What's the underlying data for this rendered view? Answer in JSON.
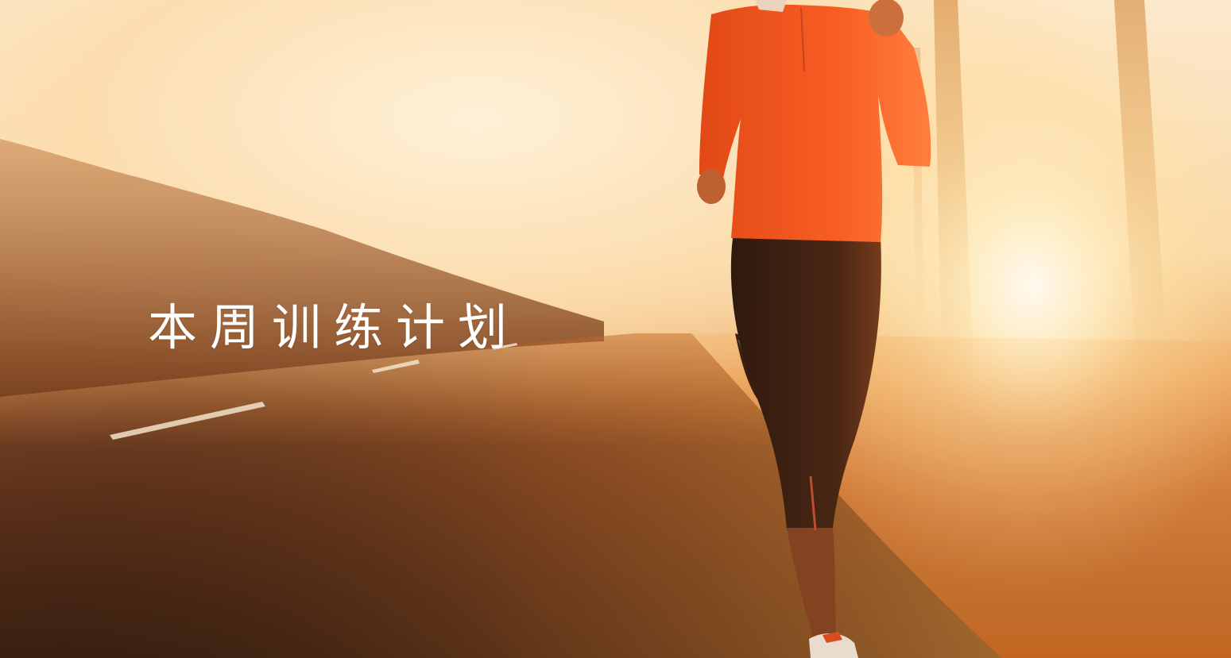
{
  "hero": {
    "title": "本周训练计划",
    "palette": {
      "sky": "#fdeed6",
      "sun": "#fffbe8",
      "road": "#3a2013",
      "jacket": "#f4501c",
      "tights": "#2a140c",
      "title_text": "#ffffff"
    }
  }
}
